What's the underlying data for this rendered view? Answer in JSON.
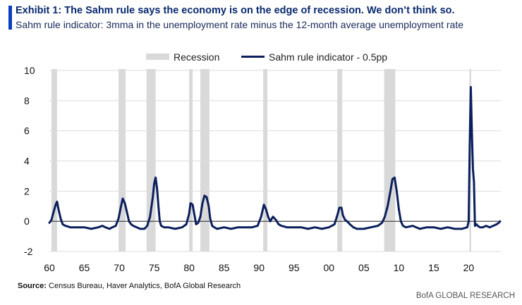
{
  "header": {
    "title": "Exhibit 1: The Sahm rule says the economy is on the edge of recession. We don’t think so.",
    "subtitle": "Sahm rule indicator: 3mma in the unemployment rate minus the 12-month average unemployment rate"
  },
  "footer": {
    "source_label": "Source:",
    "source_text": "Census Bureau, Haver Analytics, BofA Global Research",
    "brand": "BofA GLOBAL RESEARCH"
  },
  "colors": {
    "line": "#0b1f5c",
    "recession": "#d9d9d9",
    "grid": "#dcdcdc",
    "zero": "#333333",
    "accent": "#0a3fbf"
  },
  "chart_data": {
    "type": "line",
    "title": "Sahm rule indicator: 3mma in the unemployment rate minus the 12-month average unemployment rate",
    "xlabel": "",
    "ylabel": "",
    "xlim": [
      1960,
      2024.6
    ],
    "ylim": [
      -2,
      10
    ],
    "yticks": [
      -2,
      0,
      2,
      4,
      6,
      8,
      10
    ],
    "xticks": [
      {
        "year": 1960,
        "label": "60"
      },
      {
        "year": 1965,
        "label": "65"
      },
      {
        "year": 1970,
        "label": "70"
      },
      {
        "year": 1975,
        "label": "75"
      },
      {
        "year": 1980,
        "label": "80"
      },
      {
        "year": 1985,
        "label": "85"
      },
      {
        "year": 1990,
        "label": "90"
      },
      {
        "year": 1995,
        "label": "95"
      },
      {
        "year": 2000,
        "label": "00"
      },
      {
        "year": 2005,
        "label": "05"
      },
      {
        "year": 2010,
        "label": "10"
      },
      {
        "year": 2015,
        "label": "15"
      },
      {
        "year": 2020,
        "label": "20"
      }
    ],
    "grid": true,
    "legend": [
      {
        "label": "Recession",
        "kind": "bar"
      },
      {
        "label": "Sahm rule indicator - 0.5pp",
        "kind": "line"
      }
    ],
    "recessions": [
      {
        "start": 1960.3,
        "end": 1961.1
      },
      {
        "start": 1969.9,
        "end": 1970.9
      },
      {
        "start": 1973.9,
        "end": 1975.2
      },
      {
        "start": 1980.0,
        "end": 1980.5
      },
      {
        "start": 1981.6,
        "end": 1982.9
      },
      {
        "start": 1990.6,
        "end": 1991.2
      },
      {
        "start": 2001.2,
        "end": 2001.9
      },
      {
        "start": 2007.9,
        "end": 2009.5
      },
      {
        "start": 2020.1,
        "end": 2020.3
      }
    ],
    "series": [
      {
        "name": "Sahm rule indicator - 0.5pp",
        "x": [
          1960.0,
          1960.3,
          1960.6,
          1960.9,
          1961.1,
          1961.3,
          1961.6,
          1961.9,
          1962.3,
          1963.0,
          1964.0,
          1965.0,
          1966.0,
          1967.0,
          1967.6,
          1968.0,
          1968.6,
          1969.0,
          1969.5,
          1969.9,
          1970.2,
          1970.5,
          1970.8,
          1971.1,
          1971.4,
          1971.7,
          1972.0,
          1972.5,
          1973.0,
          1973.6,
          1974.0,
          1974.4,
          1974.8,
          1975.0,
          1975.2,
          1975.4,
          1975.6,
          1975.8,
          1976.0,
          1976.4,
          1977.0,
          1978.0,
          1979.0,
          1979.6,
          1980.0,
          1980.2,
          1980.5,
          1980.8,
          1981.0,
          1981.3,
          1981.6,
          1981.9,
          1982.2,
          1982.5,
          1982.8,
          1983.0,
          1983.3,
          1983.6,
          1984.0,
          1985.0,
          1986.0,
          1987.0,
          1988.0,
          1989.0,
          1989.8,
          1990.3,
          1990.7,
          1991.0,
          1991.3,
          1991.6,
          1992.0,
          1992.4,
          1992.8,
          1993.2,
          1994.0,
          1995.0,
          1996.0,
          1997.0,
          1998.0,
          1999.0,
          2000.0,
          2000.8,
          2001.2,
          2001.5,
          2001.8,
          2002.0,
          2002.3,
          2002.6,
          2003.0,
          2003.5,
          2004.0,
          2005.0,
          2006.0,
          2007.0,
          2007.6,
          2008.0,
          2008.4,
          2008.8,
          2009.1,
          2009.4,
          2009.7,
          2010.0,
          2010.3,
          2010.6,
          2011.0,
          2012.0,
          2013.0,
          2014.0,
          2015.0,
          2016.0,
          2017.0,
          2018.0,
          2019.0,
          2019.8,
          2020.0,
          2020.15,
          2020.3,
          2020.45,
          2020.6,
          2020.75,
          2020.9,
          2021.1,
          2021.3,
          2021.6,
          2022.0,
          2022.5,
          2023.0,
          2023.5,
          2024.0,
          2024.3,
          2024.5
        ],
        "values": [
          -0.1,
          0.1,
          0.6,
          1.1,
          1.3,
          0.8,
          0.2,
          -0.2,
          -0.3,
          -0.4,
          -0.4,
          -0.4,
          -0.5,
          -0.4,
          -0.3,
          -0.4,
          -0.5,
          -0.4,
          -0.3,
          0.2,
          0.9,
          1.5,
          1.2,
          0.6,
          0.0,
          -0.2,
          -0.3,
          -0.4,
          -0.5,
          -0.5,
          -0.3,
          0.3,
          1.6,
          2.5,
          2.9,
          2.2,
          1.0,
          0.0,
          -0.3,
          -0.4,
          -0.4,
          -0.5,
          -0.4,
          -0.2,
          0.5,
          1.2,
          1.1,
          0.3,
          -0.2,
          -0.1,
          0.3,
          1.2,
          1.7,
          1.6,
          1.0,
          0.2,
          -0.3,
          -0.4,
          -0.5,
          -0.4,
          -0.5,
          -0.4,
          -0.4,
          -0.4,
          -0.3,
          0.3,
          1.1,
          0.8,
          0.3,
          0.0,
          0.3,
          0.1,
          -0.2,
          -0.3,
          -0.4,
          -0.4,
          -0.4,
          -0.5,
          -0.4,
          -0.5,
          -0.4,
          -0.2,
          0.4,
          0.9,
          0.9,
          0.4,
          0.1,
          0.0,
          -0.2,
          -0.4,
          -0.5,
          -0.5,
          -0.4,
          -0.3,
          -0.1,
          0.3,
          1.0,
          2.0,
          2.8,
          2.9,
          2.0,
          0.8,
          0.0,
          -0.3,
          -0.4,
          -0.3,
          -0.5,
          -0.4,
          -0.4,
          -0.5,
          -0.4,
          -0.5,
          -0.5,
          -0.4,
          0.0,
          5.0,
          8.9,
          6.0,
          3.5,
          2.6,
          -0.3,
          -0.2,
          -0.3,
          -0.4,
          -0.4,
          -0.3,
          -0.4,
          -0.3,
          -0.2,
          -0.1,
          0.0
        ]
      }
    ]
  }
}
